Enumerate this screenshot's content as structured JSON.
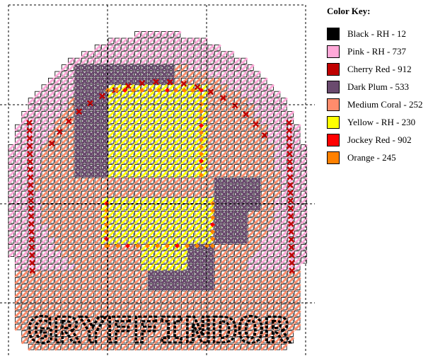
{
  "legend": {
    "title": "Color Key:",
    "items": [
      {
        "label": "Black - RH - 12",
        "color": "#000000"
      },
      {
        "label": "Pink - RH - 737",
        "color": "#ffa8d8"
      },
      {
        "label": "Cherry Red - 912",
        "color": "#c00000"
      },
      {
        "label": "Dark Plum - 533",
        "color": "#6a4a6e"
      },
      {
        "label": "Medium Coral - 252",
        "color": "#ff8c6c"
      },
      {
        "label": "Yellow - RH - 230",
        "color": "#ffff00"
      },
      {
        "label": "Jockey Red - 902",
        "color": "#ff0000"
      },
      {
        "label": "Orange - 245",
        "color": "#ff8000"
      }
    ]
  },
  "pattern": {
    "text": "GRYFFINDOR"
  }
}
